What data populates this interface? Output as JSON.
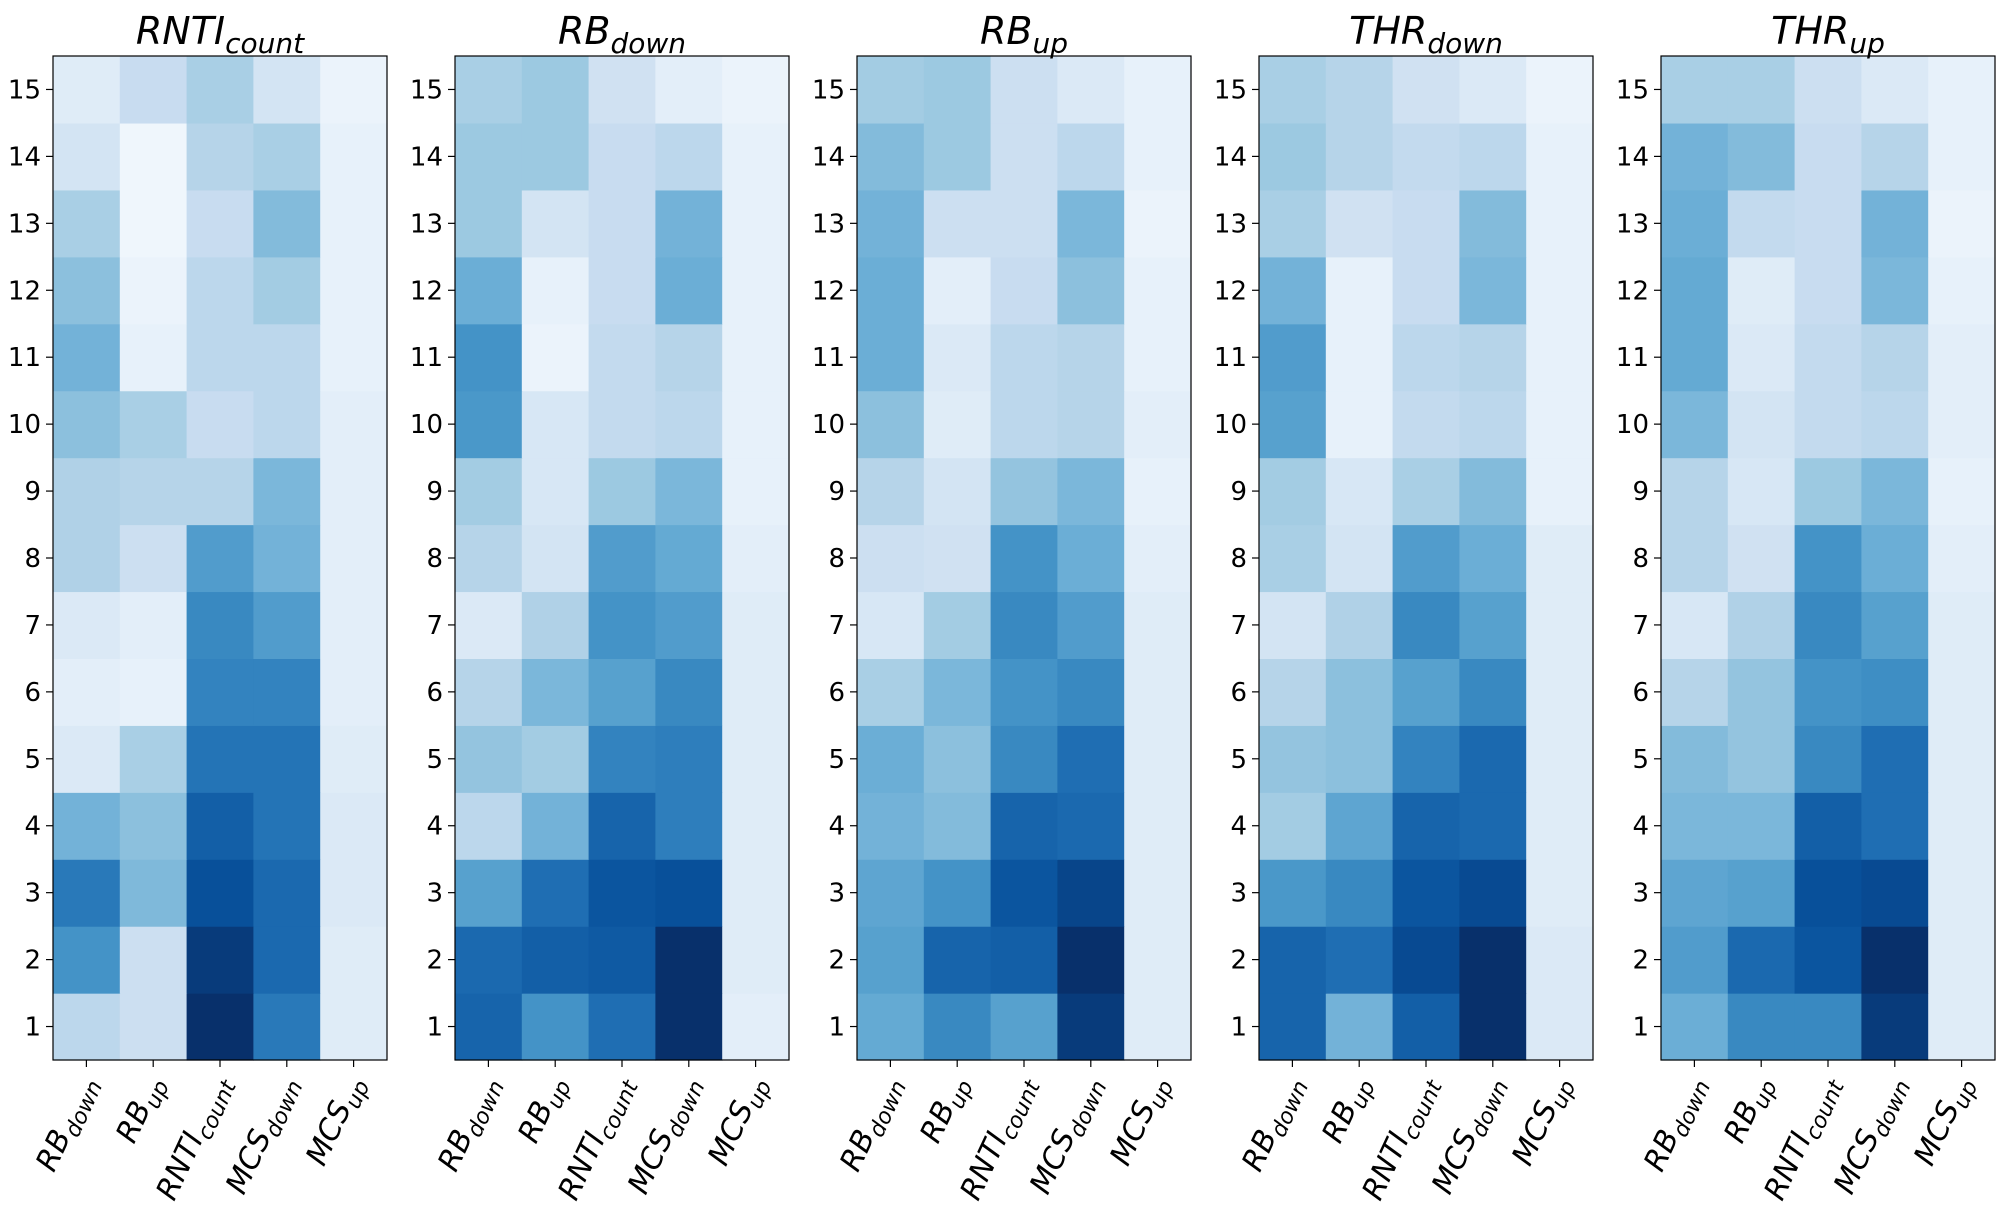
{
  "chart_data": [
    {
      "type": "heatmap",
      "title": {
        "base": "RNTI",
        "sub": "count"
      },
      "xticks": [
        {
          "base": "RB",
          "sub": "down"
        },
        {
          "base": "RB",
          "sub": "up"
        },
        {
          "base": "RNTI",
          "sub": "count"
        },
        {
          "base": "MCS",
          "sub": "down"
        },
        {
          "base": "MCS",
          "sub": "up"
        }
      ],
      "yticks": [
        "1",
        "2",
        "3",
        "4",
        "5",
        "6",
        "7",
        "8",
        "9",
        "10",
        "11",
        "12",
        "13",
        "14",
        "15"
      ],
      "colormap": "Blues",
      "values": [
        [
          0.28,
          0.22,
          1.0,
          0.72,
          0.12
        ],
        [
          0.62,
          0.22,
          0.96,
          0.78,
          0.12
        ],
        [
          0.72,
          0.45,
          0.88,
          0.78,
          0.14
        ],
        [
          0.48,
          0.42,
          0.82,
          0.74,
          0.14
        ],
        [
          0.14,
          0.34,
          0.74,
          0.74,
          0.12
        ],
        [
          0.1,
          0.08,
          0.68,
          0.68,
          0.1
        ],
        [
          0.14,
          0.1,
          0.66,
          0.58,
          0.1
        ],
        [
          0.32,
          0.22,
          0.58,
          0.48,
          0.1
        ],
        [
          0.32,
          0.3,
          0.3,
          0.46,
          0.1
        ],
        [
          0.42,
          0.34,
          0.24,
          0.28,
          0.1
        ],
        [
          0.48,
          0.08,
          0.28,
          0.28,
          0.08
        ],
        [
          0.42,
          0.06,
          0.28,
          0.36,
          0.08
        ],
        [
          0.34,
          0.04,
          0.24,
          0.44,
          0.08
        ],
        [
          0.18,
          0.04,
          0.3,
          0.34,
          0.08
        ],
        [
          0.12,
          0.24,
          0.34,
          0.18,
          0.06
        ]
      ]
    },
    {
      "type": "heatmap",
      "title": {
        "base": "RB",
        "sub": "down"
      },
      "xticks": [
        {
          "base": "RB",
          "sub": "down"
        },
        {
          "base": "RB",
          "sub": "up"
        },
        {
          "base": "RNTI",
          "sub": "count"
        },
        {
          "base": "MCS",
          "sub": "down"
        },
        {
          "base": "MCS",
          "sub": "up"
        }
      ],
      "yticks": [
        "1",
        "2",
        "3",
        "4",
        "5",
        "6",
        "7",
        "8",
        "9",
        "10",
        "11",
        "12",
        "13",
        "14",
        "15"
      ],
      "colormap": "Blues",
      "values": [
        [
          0.8,
          0.62,
          0.76,
          1.0,
          0.1
        ],
        [
          0.78,
          0.82,
          0.84,
          1.0,
          0.12
        ],
        [
          0.56,
          0.76,
          0.86,
          0.88,
          0.12
        ],
        [
          0.28,
          0.48,
          0.8,
          0.7,
          0.12
        ],
        [
          0.4,
          0.36,
          0.68,
          0.7,
          0.12
        ],
        [
          0.3,
          0.46,
          0.56,
          0.66,
          0.12
        ],
        [
          0.14,
          0.32,
          0.62,
          0.58,
          0.12
        ],
        [
          0.3,
          0.18,
          0.58,
          0.52,
          0.1
        ],
        [
          0.36,
          0.16,
          0.38,
          0.46,
          0.08
        ],
        [
          0.6,
          0.16,
          0.26,
          0.28,
          0.08
        ],
        [
          0.62,
          0.06,
          0.26,
          0.3,
          0.08
        ],
        [
          0.5,
          0.08,
          0.24,
          0.5,
          0.08
        ],
        [
          0.38,
          0.18,
          0.24,
          0.48,
          0.08
        ],
        [
          0.38,
          0.38,
          0.24,
          0.28,
          0.08
        ],
        [
          0.34,
          0.38,
          0.2,
          0.1,
          0.06
        ]
      ]
    },
    {
      "type": "heatmap",
      "title": {
        "base": "RB",
        "sub": "up"
      },
      "xticks": [
        {
          "base": "RB",
          "sub": "down"
        },
        {
          "base": "RB",
          "sub": "up"
        },
        {
          "base": "RNTI",
          "sub": "count"
        },
        {
          "base": "MCS",
          "sub": "down"
        },
        {
          "base": "MCS",
          "sub": "up"
        }
      ],
      "yticks": [
        "1",
        "2",
        "3",
        "4",
        "5",
        "6",
        "7",
        "8",
        "9",
        "10",
        "11",
        "12",
        "13",
        "14",
        "15"
      ],
      "colormap": "Blues",
      "values": [
        [
          0.52,
          0.66,
          0.56,
          0.96,
          0.12
        ],
        [
          0.56,
          0.8,
          0.82,
          1.0,
          0.12
        ],
        [
          0.54,
          0.62,
          0.86,
          0.92,
          0.12
        ],
        [
          0.48,
          0.44,
          0.8,
          0.78,
          0.12
        ],
        [
          0.5,
          0.42,
          0.66,
          0.76,
          0.12
        ],
        [
          0.34,
          0.46,
          0.62,
          0.66,
          0.12
        ],
        [
          0.16,
          0.36,
          0.66,
          0.58,
          0.12
        ],
        [
          0.22,
          0.2,
          0.62,
          0.5,
          0.1
        ],
        [
          0.3,
          0.18,
          0.4,
          0.46,
          0.08
        ],
        [
          0.42,
          0.12,
          0.28,
          0.3,
          0.1
        ],
        [
          0.5,
          0.14,
          0.28,
          0.3,
          0.08
        ],
        [
          0.5,
          0.1,
          0.24,
          0.42,
          0.08
        ],
        [
          0.48,
          0.22,
          0.22,
          0.46,
          0.06
        ],
        [
          0.44,
          0.38,
          0.22,
          0.28,
          0.08
        ],
        [
          0.36,
          0.38,
          0.22,
          0.14,
          0.08
        ]
      ]
    },
    {
      "type": "heatmap",
      "title": {
        "base": "THR",
        "sub": "down"
      },
      "xticks": [
        {
          "base": "RB",
          "sub": "down"
        },
        {
          "base": "RB",
          "sub": "up"
        },
        {
          "base": "RNTI",
          "sub": "count"
        },
        {
          "base": "MCS",
          "sub": "down"
        },
        {
          "base": "MCS",
          "sub": "up"
        }
      ],
      "yticks": [
        "1",
        "2",
        "3",
        "4",
        "5",
        "6",
        "7",
        "8",
        "9",
        "10",
        "11",
        "12",
        "13",
        "14",
        "15"
      ],
      "colormap": "Blues",
      "values": [
        [
          0.8,
          0.48,
          0.82,
          1.0,
          0.14
        ],
        [
          0.8,
          0.76,
          0.9,
          1.0,
          0.14
        ],
        [
          0.6,
          0.66,
          0.86,
          0.9,
          0.12
        ],
        [
          0.36,
          0.54,
          0.8,
          0.78,
          0.12
        ],
        [
          0.4,
          0.42,
          0.68,
          0.78,
          0.12
        ],
        [
          0.3,
          0.42,
          0.56,
          0.66,
          0.12
        ],
        [
          0.18,
          0.32,
          0.66,
          0.56,
          0.12
        ],
        [
          0.34,
          0.18,
          0.58,
          0.5,
          0.12
        ],
        [
          0.36,
          0.16,
          0.34,
          0.44,
          0.08
        ],
        [
          0.56,
          0.08,
          0.26,
          0.28,
          0.08
        ],
        [
          0.58,
          0.08,
          0.28,
          0.3,
          0.08
        ],
        [
          0.48,
          0.08,
          0.24,
          0.46,
          0.08
        ],
        [
          0.34,
          0.2,
          0.24,
          0.44,
          0.08
        ],
        [
          0.38,
          0.3,
          0.26,
          0.28,
          0.08
        ],
        [
          0.34,
          0.3,
          0.2,
          0.14,
          0.06
        ]
      ]
    },
    {
      "type": "heatmap",
      "title": {
        "base": "THR",
        "sub": "up"
      },
      "xticks": [
        {
          "base": "RB",
          "sub": "down"
        },
        {
          "base": "RB",
          "sub": "up"
        },
        {
          "base": "RNTI",
          "sub": "count"
        },
        {
          "base": "MCS",
          "sub": "down"
        },
        {
          "base": "MCS",
          "sub": "up"
        }
      ],
      "yticks": [
        "1",
        "2",
        "3",
        "4",
        "5",
        "6",
        "7",
        "8",
        "9",
        "10",
        "11",
        "12",
        "13",
        "14",
        "15"
      ],
      "colormap": "Blues",
      "values": [
        [
          0.5,
          0.66,
          0.66,
          0.96,
          0.12
        ],
        [
          0.58,
          0.78,
          0.86,
          1.0,
          0.12
        ],
        [
          0.54,
          0.56,
          0.88,
          0.9,
          0.12
        ],
        [
          0.46,
          0.46,
          0.82,
          0.76,
          0.12
        ],
        [
          0.44,
          0.4,
          0.66,
          0.76,
          0.12
        ],
        [
          0.3,
          0.4,
          0.62,
          0.64,
          0.12
        ],
        [
          0.16,
          0.32,
          0.66,
          0.56,
          0.12
        ],
        [
          0.3,
          0.2,
          0.62,
          0.5,
          0.1
        ],
        [
          0.3,
          0.16,
          0.38,
          0.46,
          0.08
        ],
        [
          0.46,
          0.18,
          0.26,
          0.28,
          0.1
        ],
        [
          0.52,
          0.14,
          0.26,
          0.3,
          0.1
        ],
        [
          0.52,
          0.12,
          0.24,
          0.46,
          0.08
        ],
        [
          0.5,
          0.26,
          0.24,
          0.48,
          0.06
        ],
        [
          0.48,
          0.44,
          0.24,
          0.3,
          0.08
        ],
        [
          0.34,
          0.34,
          0.22,
          0.14,
          0.08
        ]
      ]
    }
  ]
}
